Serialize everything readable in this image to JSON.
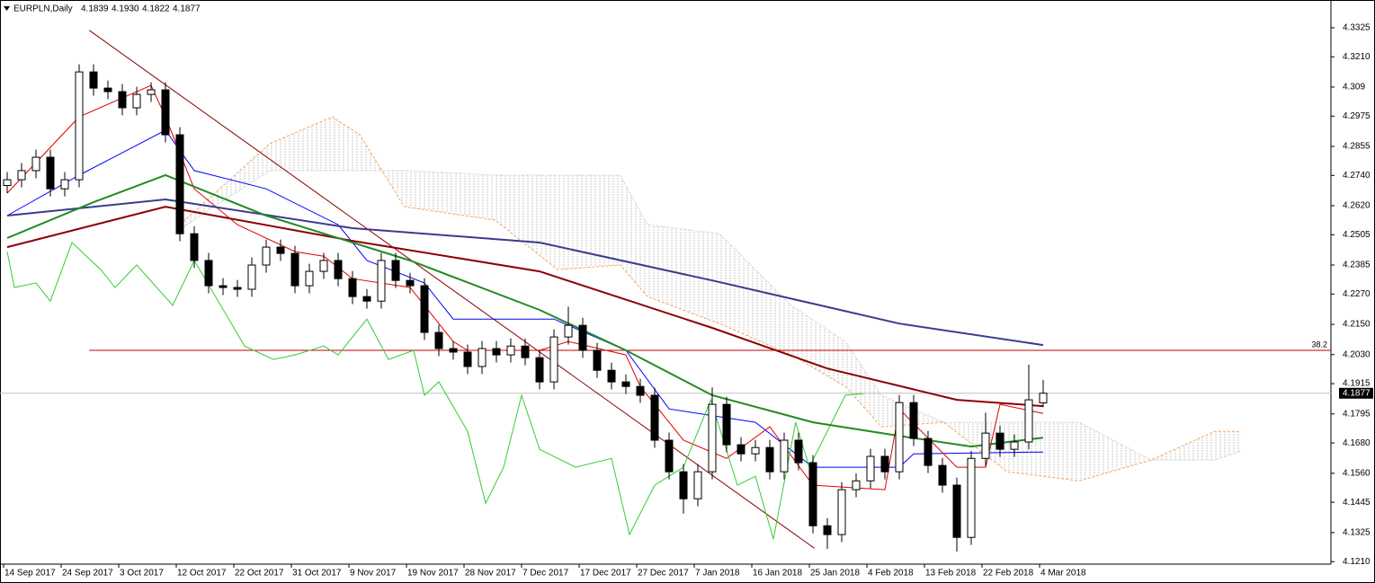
{
  "chart_data": {
    "type": "candlestick",
    "title": "EURPLN,Daily",
    "header": [
      "4.1839",
      "4.1930",
      "4.1822",
      "4.1877"
    ],
    "ylim": [
      4.12,
      4.3435
    ],
    "yticks": [
      4.3325,
      {
        "value": 4.321,
        "label": "4.3210"
      },
      4.309,
      4.2975,
      4.2855,
      {
        "value": 4.274,
        "label": "4.2740"
      },
      {
        "value": 4.262,
        "label": "4.2620"
      },
      4.2505,
      4.2385,
      {
        "value": 4.227,
        "label": "4.2270"
      },
      {
        "value": 4.215,
        "label": "4.2150"
      },
      {
        "value": 4.203,
        "label": "4.2030"
      },
      4.1915,
      4.1795,
      {
        "value": 4.168,
        "label": "4.1680"
      },
      {
        "value": 4.156,
        "label": "4.1560"
      },
      4.1445,
      4.1325,
      {
        "value": 4.121,
        "label": "4.1210"
      }
    ],
    "date_labels": [
      "14 Sep 2017",
      "24 Sep 2017",
      "3 Oct 2017",
      "12 Oct 2017",
      "22 Oct 2017",
      "31 Oct 2017",
      "9 Nov 2017",
      "19 Nov 2017",
      "28 Nov 2017",
      "7 Dec 2017",
      "17 Dec 2017",
      "27 Dec 2017",
      "7 Jan 2018",
      "16 Jan 2018",
      "25 Jan 2018",
      "4 Feb 2018",
      "13 Feb 2018",
      "22 Feb 2018",
      "4 Mar 2018"
    ],
    "candles": {
      "open": [
        4.27,
        4.2723,
        4.2759,
        4.2812,
        4.2687,
        4.2723,
        4.315,
        4.3086,
        4.3072,
        4.3008,
        4.3061,
        4.3079,
        4.2901,
        4.2509,
        4.2403,
        4.2303,
        4.2296,
        4.2289,
        4.2385,
        4.2456,
        4.2431,
        4.2303,
        4.236,
        4.2403,
        4.2331,
        4.226,
        4.2242,
        4.2403,
        4.2324,
        4.2303,
        4.2118,
        4.2054,
        4.204,
        4.1983,
        4.2054,
        4.2029,
        4.2064,
        4.2018,
        4.1922,
        4.21,
        4.2146,
        4.2047,
        4.1968,
        4.1922,
        4.1904,
        4.1869,
        4.1691,
        4.1566,
        4.1459,
        4.1566,
        4.1833,
        4.1673,
        4.1637,
        4.1662,
        4.1566,
        4.1691,
        4.1602,
        4.1352,
        4.1317,
        4.1495,
        4.153,
        4.1627,
        4.1566,
        4.184,
        4.1698,
        4.1591,
        4.1513,
        4.1306,
        4.1619,
        4.1719,
        4.1655,
        4.1684,
        4.1839
      ],
      "high": [
        4.2753,
        4.2789,
        4.2842,
        4.2842,
        4.2753,
        4.318,
        4.318,
        4.3116,
        4.3102,
        4.3091,
        4.3109,
        4.3109,
        4.2931,
        4.2539,
        4.2433,
        4.2333,
        4.2326,
        4.2415,
        4.2486,
        4.2486,
        4.2461,
        4.239,
        4.2433,
        4.2433,
        4.2361,
        4.229,
        4.2433,
        4.2433,
        4.2354,
        4.2333,
        4.2148,
        4.2084,
        4.207,
        4.2084,
        4.2084,
        4.2094,
        4.2094,
        4.2048,
        4.213,
        4.222,
        4.2176,
        4.2077,
        4.1998,
        4.1952,
        4.1934,
        4.1899,
        4.1721,
        4.1596,
        4.1596,
        4.19,
        4.1863,
        4.1703,
        4.1692,
        4.1692,
        4.1721,
        4.1721,
        4.1632,
        4.1382,
        4.1525,
        4.156,
        4.1657,
        4.1657,
        4.187,
        4.187,
        4.1728,
        4.1621,
        4.1543,
        4.1649,
        4.18,
        4.1749,
        4.1714,
        4.199,
        4.193
      ],
      "low": [
        4.267,
        4.2693,
        4.2729,
        4.2657,
        4.2657,
        4.2693,
        4.3056,
        4.3042,
        4.2978,
        4.2978,
        4.3031,
        4.2871,
        4.2479,
        4.2373,
        4.2273,
        4.2266,
        4.2259,
        4.2259,
        4.2355,
        4.2401,
        4.2273,
        4.2273,
        4.233,
        4.2301,
        4.223,
        4.2212,
        4.2212,
        4.2294,
        4.2273,
        4.2088,
        4.2024,
        4.201,
        4.1953,
        4.1953,
        4.1999,
        4.1999,
        4.1988,
        4.1892,
        4.1892,
        4.207,
        4.2017,
        4.1938,
        4.1892,
        4.1874,
        4.1839,
        4.1661,
        4.1536,
        4.14,
        4.1429,
        4.1536,
        4.1643,
        4.1607,
        4.1607,
        4.1536,
        4.1536,
        4.1572,
        4.1322,
        4.126,
        4.1287,
        4.1465,
        4.15,
        4.1536,
        4.1536,
        4.1668,
        4.1561,
        4.1483,
        4.125,
        4.1276,
        4.1589,
        4.1625,
        4.1625,
        4.1654,
        4.1822
      ],
      "close": [
        4.2723,
        4.2759,
        4.2812,
        4.2687,
        4.2723,
        4.315,
        4.3086,
        4.3072,
        4.3008,
        4.3061,
        4.3079,
        4.2901,
        4.2509,
        4.2403,
        4.2303,
        4.2296,
        4.2289,
        4.2385,
        4.2456,
        4.2431,
        4.2303,
        4.236,
        4.2403,
        4.2331,
        4.226,
        4.2242,
        4.2403,
        4.2324,
        4.2303,
        4.2118,
        4.2054,
        4.204,
        4.1983,
        4.2054,
        4.2029,
        4.2064,
        4.2018,
        4.1922,
        4.21,
        4.2146,
        4.2047,
        4.1968,
        4.1922,
        4.1904,
        4.1869,
        4.1691,
        4.1566,
        4.1459,
        4.1566,
        4.1833,
        4.1673,
        4.1637,
        4.1662,
        4.1566,
        4.1691,
        4.1602,
        4.1352,
        4.1317,
        4.1495,
        4.153,
        4.1627,
        4.1566,
        4.184,
        4.1698,
        4.1591,
        4.1513,
        4.1306,
        4.1619,
        4.1719,
        4.1655,
        4.1684,
        4.1851,
        4.1877
      ]
    },
    "cloud": {
      "x": [
        12,
        18.25,
        22.6,
        24.5,
        27.6,
        33.9,
        38.25,
        42.6,
        44.5,
        49.5,
        54.5,
        58.25,
        60.75,
        65.1,
        69.5,
        74.5,
        79.5,
        83.9,
        85.75
      ],
      "span_a": [
        4.2545,
        4.2866,
        4.2972,
        4.2901,
        4.2616,
        4.2563,
        4.2367,
        4.2385,
        4.226,
        4.2153,
        4.2029,
        4.1904,
        4.1744,
        4.1762,
        4.1566,
        4.153,
        4.1612,
        4.1726,
        4.1726
      ],
      "span_b": [
        4.2527,
        4.2759,
        4.2759,
        4.2759,
        4.2759,
        4.2741,
        4.2741,
        4.2741,
        4.2545,
        4.2509,
        4.2225,
        4.2082,
        4.1869,
        4.1762,
        4.1762,
        4.1762,
        4.1612,
        4.1612,
        4.1648
      ],
      "color_a": "#f4a460",
      "color_b": "#b0b0b0"
    },
    "moving_averages": [
      {
        "color": "#3b3b8f",
        "x": [
          0,
          11,
          24,
          37,
          49,
          62,
          72
        ],
        "values": [
          4.2581,
          4.2645,
          4.2531,
          4.2474,
          4.2324,
          4.2153,
          4.2068
        ]
      },
      {
        "color": "#8b0000",
        "x": [
          0,
          11,
          24,
          37,
          49,
          57,
          66,
          72
        ],
        "values": [
          4.2456,
          4.2616,
          4.2481,
          4.236,
          4.2136,
          4.1975,
          4.1851,
          4.1826
        ]
      },
      {
        "color": "#228b22",
        "x": [
          0,
          6,
          11,
          18,
          28,
          37,
          43,
          49,
          56,
          62,
          67,
          72
        ],
        "values": [
          4.2492,
          4.2634,
          4.2741,
          4.2581,
          4.2403,
          4.2207,
          4.2047,
          4.1869,
          4.1762,
          4.1708,
          4.1666,
          4.1701
        ]
      }
    ],
    "ichimoku_lines": [
      {
        "color": "#0000ff",
        "x": [
          0,
          5,
          11,
          13,
          18,
          23,
          25,
          29,
          31,
          38,
          43,
          46,
          52,
          56,
          62,
          63,
          72
        ],
        "values": [
          4.2581,
          4.2741,
          4.2919,
          4.2759,
          4.2687,
          4.2545,
          4.2403,
          4.2314,
          4.2171,
          4.2171,
          4.2047,
          4.1815,
          4.1762,
          4.1584,
          4.1584,
          4.1637,
          4.1644
        ]
      },
      {
        "color": "#e00000",
        "x": [
          0,
          5,
          10,
          11,
          13,
          16,
          20,
          22,
          24,
          28,
          31,
          32,
          37,
          39,
          43,
          44,
          47,
          50,
          53,
          56,
          61,
          62,
          66,
          68,
          69,
          72
        ],
        "values": [
          4.267,
          4.2972,
          4.3097,
          4.2972,
          4.2687,
          4.2545,
          4.2438,
          4.242,
          4.2331,
          4.2296,
          4.2082,
          4.2047,
          4.2047,
          4.2082,
          4.2029,
          4.1904,
          4.1691,
          4.1619,
          4.1744,
          4.1513,
          4.1495,
          4.1815,
          4.1584,
          4.1584,
          4.1833,
          4.1797
        ]
      },
      {
        "color": "#32cd32",
        "x": [
          0,
          0.5,
          2,
          3,
          4.5,
          6.5,
          7.5,
          9,
          11.5,
          13,
          16.5,
          18.5,
          20,
          22,
          23,
          25,
          26.5,
          28.25,
          29,
          30,
          32,
          33.25,
          34.5,
          35.75,
          37,
          39.5,
          42,
          43.25,
          45,
          47,
          48.9,
          50.75,
          52,
          53.25,
          54.8,
          55.75,
          58.25,
          59.5
        ],
        "values": [
          4.2438,
          4.2296,
          4.2314,
          4.2242,
          4.2474,
          4.2367,
          4.2296,
          4.2385,
          4.2225,
          4.2403,
          4.2064,
          4.2011,
          4.2029,
          4.2064,
          4.2029,
          4.2171,
          4.2011,
          4.2047,
          4.1869,
          4.1922,
          4.1726,
          4.1441,
          4.1584,
          4.1869,
          4.1655,
          4.1584,
          4.1619,
          4.1317,
          4.1513,
          4.1584,
          4.1851,
          4.1513,
          4.1548,
          4.1299,
          4.1762,
          4.1584,
          4.1869,
          4.1876
        ]
      }
    ],
    "trendline": {
      "color": "#8b0000",
      "x": [
        5.7,
        56.1
      ],
      "values": [
        4.3315,
        4.1263
      ]
    },
    "level": {
      "value": 4.2047,
      "label": "38.2",
      "color": "#c00000"
    },
    "last_price": 4.1877
  }
}
